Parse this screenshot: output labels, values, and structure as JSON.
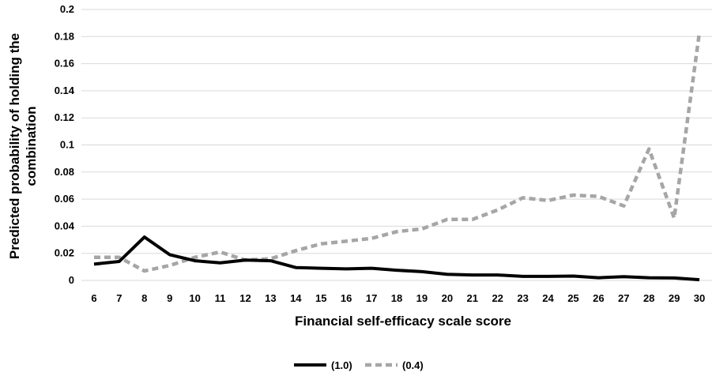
{
  "chart_data": {
    "type": "line",
    "xlabel": "Financial self-efficacy scale score",
    "ylabel_lines": [
      "Predicted probability of holding the",
      "combination"
    ],
    "x": [
      6,
      7,
      8,
      9,
      10,
      11,
      12,
      13,
      14,
      15,
      16,
      17,
      18,
      19,
      20,
      21,
      22,
      23,
      24,
      25,
      26,
      27,
      28,
      29,
      30
    ],
    "x_tick_labels": [
      "6",
      "7",
      "8",
      "9",
      "10",
      "11",
      "12",
      "13",
      "14",
      "15",
      "16",
      "17",
      "18",
      "19",
      "20",
      "21",
      "22",
      "23",
      "24",
      "25",
      "26",
      "27",
      "28",
      "29",
      "30"
    ],
    "ylim": [
      0,
      0.2
    ],
    "y_ticks": [
      0,
      0.02,
      0.04,
      0.06,
      0.08,
      0.1,
      0.12,
      0.14,
      0.16,
      0.18,
      0.2
    ],
    "y_tick_labels": [
      "0",
      "0.02",
      "0.04",
      "0.06",
      "0.08",
      "0.1",
      "0.12",
      "0.14",
      "0.16",
      "0.18",
      "0.2"
    ],
    "grid": true,
    "legend_position": "bottom",
    "series": [
      {
        "name": "(1.0)",
        "color": "#000000",
        "style": "solid",
        "values": [
          0.012,
          0.014,
          0.032,
          0.019,
          0.0145,
          0.013,
          0.015,
          0.0145,
          0.0095,
          0.009,
          0.0085,
          0.009,
          0.0075,
          0.0065,
          0.0045,
          0.004,
          0.004,
          0.003,
          0.003,
          0.0032,
          0.002,
          0.0028,
          0.002,
          0.0018,
          0.0005
        ]
      },
      {
        "name": "(0.4)",
        "color": "#a6a6a6",
        "style": "dashed",
        "values": [
          0.017,
          0.017,
          0.007,
          0.011,
          0.017,
          0.021,
          0.015,
          0.016,
          0.022,
          0.027,
          0.029,
          0.031,
          0.036,
          0.038,
          0.045,
          0.045,
          0.052,
          0.061,
          0.059,
          0.063,
          0.062,
          0.055,
          0.097,
          0.046,
          0.183
        ]
      }
    ]
  }
}
